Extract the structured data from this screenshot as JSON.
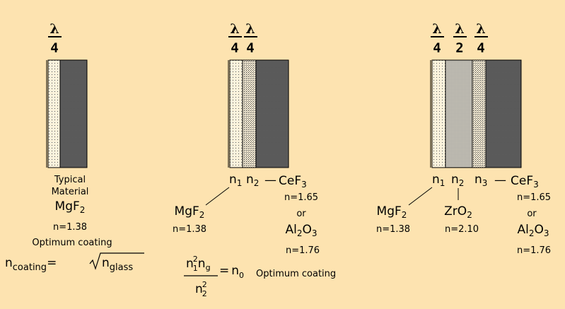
{
  "diagram1": {
    "stack": {
      "numerator": "λ",
      "denominator": "4"
    },
    "material_caption": [
      "Typical",
      "Material"
    ],
    "material": "MgF",
    "material_sub": "2",
    "index": "n=1.38",
    "optimum_label": "Optimum coating",
    "formula": {
      "lhs": "n",
      "lhs_sub": "coating",
      "eq": "=",
      "rhs": "n",
      "rhs_sub": "glass"
    }
  },
  "diagram2": {
    "stacks": [
      {
        "numerator": "λ",
        "denominator": "4"
      },
      {
        "numerator": "λ",
        "denominator": "4"
      }
    ],
    "n_labels": [
      {
        "n": "n",
        "sub": "1"
      },
      {
        "n": "n",
        "sub": "2"
      }
    ],
    "dash": "—",
    "outer_material": "CeF",
    "outer_material_sub": "3",
    "outer_index": "n=1.65",
    "or_label": "or",
    "alt_material": "Al",
    "alt_sub1": "2",
    "alt_mid": "O",
    "alt_sub2": "3",
    "alt_index": "n=1.76",
    "inner_material": "MgF",
    "inner_material_sub": "2",
    "inner_index": "n=1.38",
    "formula": {
      "num_n": "n",
      "num_n_sup": "2",
      "num_n_sub": "1",
      "num_g": "n",
      "num_g_sub": "g",
      "den_n": "n",
      "den_sup": "2",
      "den_sub": "2",
      "eq": "=",
      "rhs": "n",
      "rhs_sub": "0",
      "label": "Optimum coating"
    }
  },
  "diagram3": {
    "stacks": [
      {
        "numerator": "λ",
        "denominator": "4"
      },
      {
        "numerator": "λ",
        "denominator": "2"
      },
      {
        "numerator": "λ",
        "denominator": "4"
      }
    ],
    "n_labels": [
      {
        "n": "n",
        "sub": "1"
      },
      {
        "n": "n",
        "sub": "2"
      },
      {
        "n": "n",
        "sub": "3"
      }
    ],
    "dash": "—",
    "outer_material": "CeF",
    "outer_material_sub": "3",
    "outer_index": "n=1.65",
    "or_label": "or",
    "alt_material": "Al",
    "alt_sub1": "2",
    "alt_mid": "O",
    "alt_sub2": "3",
    "alt_index": "n=1.76",
    "inner_material": "MgF",
    "inner_material_sub": "2",
    "inner_index": "n=1.38",
    "middle_material": "ZrO",
    "middle_material_sub": "2",
    "middle_index": "n=2.10"
  },
  "colors": {
    "background": "#fde3b0",
    "glass": "#5a5a5a",
    "light_coating": "#fbf3dc",
    "medium_coating": "#c9c6bb",
    "dark_coating": "#a6a49b"
  }
}
